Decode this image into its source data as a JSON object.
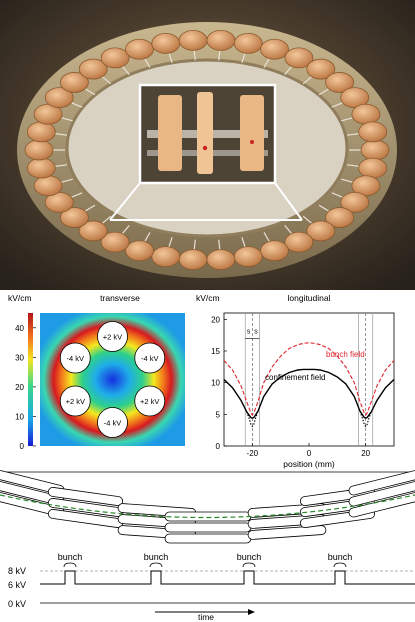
{
  "panel_a": {
    "photo_alt": "Ring of electrodes on a metal base with an inset zoom"
  },
  "panel_b": {
    "colorbar_unit": "kV/cm",
    "colorbar_ticks": [
      "40",
      "30",
      "20",
      "10",
      "0"
    ],
    "transverse_title": "transverse",
    "electrodes": [
      "+2 kV",
      "-4 kV",
      "-4 kV",
      "+2 kV",
      "+2 kV",
      "-4 kV"
    ],
    "colors": {
      "cmap_low": "#1a1ad6",
      "cmap_high": "#d71920"
    }
  },
  "chart_data": {
    "type": "line",
    "title": "longitudinal",
    "ylabel": "kV/cm",
    "xlabel": "position (mm)",
    "xticks": [
      "-20",
      "0",
      "20"
    ],
    "yticks": [
      "0",
      "5",
      "10",
      "15",
      "20"
    ],
    "xlim": [
      -30,
      30
    ],
    "ylim": [
      0,
      21
    ],
    "annotation_s": "s",
    "series": [
      {
        "name": "bunch field",
        "style": "dashed",
        "color": "#e0242b",
        "x": [
          -30,
          -27,
          -24,
          -22,
          -20.5,
          -20,
          -19.5,
          -18,
          -16,
          -13,
          -10,
          -7,
          -4,
          -2,
          0,
          2,
          4,
          7,
          10,
          13,
          16,
          18,
          19.5,
          20,
          20.5,
          22,
          24,
          27,
          30
        ],
        "y": [
          13.5,
          12,
          9.5,
          7,
          5.2,
          4.9,
          5.2,
          7,
          10,
          12.5,
          14.2,
          15.4,
          16,
          16.2,
          16.3,
          16.2,
          16,
          15.4,
          14.2,
          12.5,
          10,
          7,
          5.2,
          4.9,
          5.2,
          7,
          9.5,
          12,
          13.5
        ]
      },
      {
        "name": "confinement field",
        "style": "solid",
        "color": "#000000",
        "x": [
          -30,
          -27,
          -24,
          -22,
          -20.5,
          -20,
          -19.5,
          -18,
          -16,
          -13,
          -10,
          -7,
          -4,
          -2,
          0,
          2,
          4,
          7,
          10,
          13,
          16,
          18,
          19.5,
          20,
          20.5,
          22,
          24,
          27,
          30
        ],
        "y": [
          10.5,
          9.2,
          7.2,
          5.4,
          4.5,
          4.4,
          4.5,
          5.5,
          7.8,
          9.8,
          10.9,
          11.6,
          12,
          12.1,
          12.1,
          12.1,
          12,
          11.6,
          10.9,
          9.8,
          7.8,
          5.5,
          4.5,
          4.4,
          4.5,
          5.4,
          7.2,
          9.2,
          10.5
        ]
      },
      {
        "name": "",
        "style": "dotted",
        "color": "#000000",
        "x": [
          -22,
          -21,
          -20.5,
          -20,
          -19.5,
          -19,
          -18
        ],
        "y": [
          5.4,
          4.2,
          3.4,
          3.1,
          3.4,
          4.2,
          5.5
        ]
      },
      {
        "name": "",
        "style": "dotted",
        "color": "#000000",
        "x": [
          18,
          19,
          19.5,
          20,
          20.5,
          21,
          22
        ],
        "y": [
          5.5,
          4.2,
          3.4,
          3.1,
          3.4,
          4.2,
          5.4
        ]
      }
    ]
  },
  "panel_c": {
    "bunch_label": "bunch",
    "bunch_count": 4,
    "levels": [
      "8 kV",
      "6 kV",
      "0 kV"
    ],
    "time_label": "time"
  }
}
